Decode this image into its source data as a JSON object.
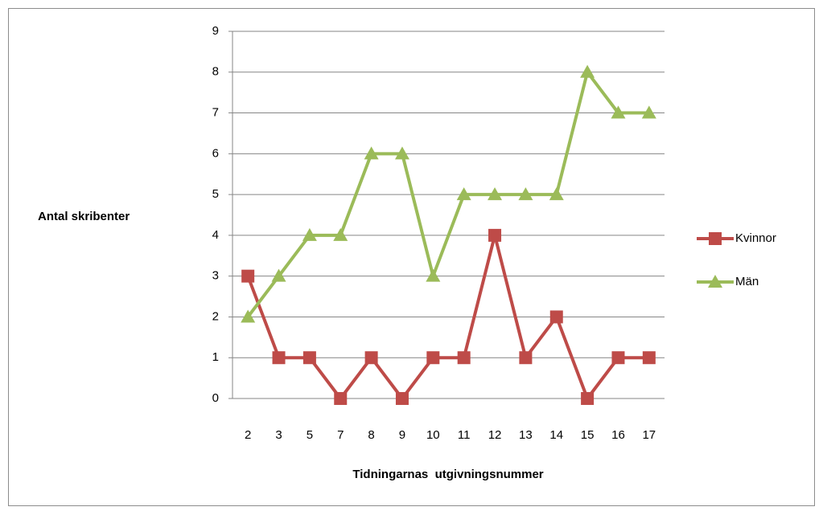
{
  "chart_data": {
    "type": "line",
    "y_label": "Antal skribenter",
    "x_label": "Tidningarnas  utgivningsnummer",
    "categories": [
      "2",
      "3",
      "5",
      "7",
      "8",
      "9",
      "10",
      "11",
      "12",
      "13",
      "14",
      "15",
      "16",
      "17"
    ],
    "series": [
      {
        "name": "Kvinnor",
        "color": "#be4b48",
        "marker": "square",
        "values": [
          3,
          1,
          1,
          0,
          1,
          0,
          1,
          1,
          4,
          1,
          2,
          0,
          1,
          1
        ]
      },
      {
        "name": "Män",
        "color": "#9bbb59",
        "marker": "triangle",
        "values": [
          2,
          3,
          4,
          4,
          6,
          6,
          3,
          5,
          5,
          5,
          5,
          8,
          7,
          7
        ]
      }
    ],
    "ylim": [
      0,
      9
    ],
    "yticks": [
      0,
      1,
      2,
      3,
      4,
      5,
      6,
      7,
      8,
      9
    ],
    "grid": true,
    "legend": "right"
  }
}
